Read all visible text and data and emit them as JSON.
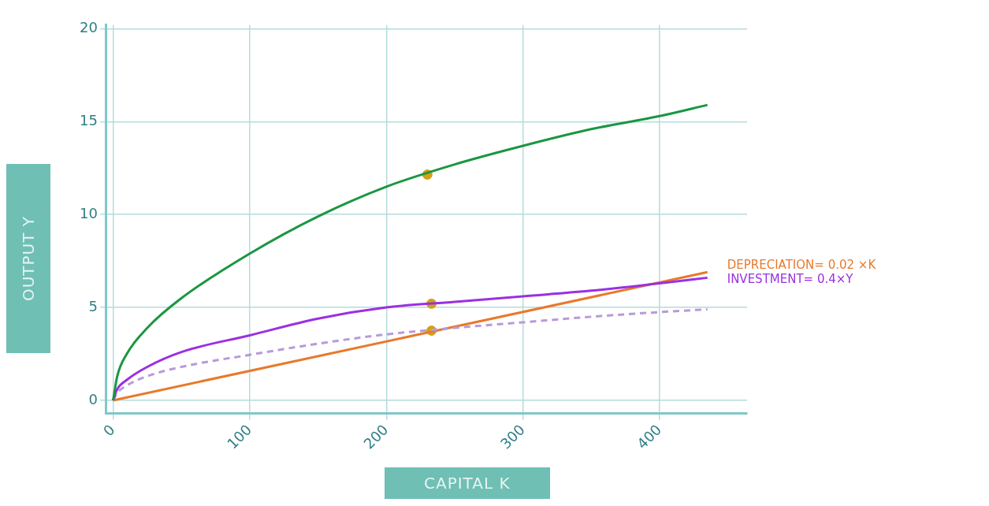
{
  "chart_data": {
    "type": "line",
    "xlabel": "CAPITAL K",
    "ylabel": "OUTPUT Y",
    "xlim": [
      -5,
      464
    ],
    "ylim": [
      -0.7,
      20.2
    ],
    "xticks": [
      0,
      100,
      200,
      300,
      400
    ],
    "yticks": [
      0,
      5,
      10,
      15,
      20
    ],
    "grid": true,
    "legend": false,
    "marker": "none",
    "series": [
      {
        "color": "#1a9641",
        "x": [
          0,
          3,
          10,
          25,
          50,
          100,
          150,
          200,
          250,
          300,
          350,
          400,
          435
        ],
        "values": [
          0,
          1.3,
          2.5,
          3.9,
          5.5,
          7.9,
          9.9,
          11.5,
          12.7,
          13.7,
          14.6,
          15.3,
          15.9
        ]
      },
      {
        "name": "INVESTMENT= 0.4×Y",
        "color": "#9b30e0",
        "x": [
          0,
          3,
          10,
          25,
          50,
          100,
          150,
          200,
          250,
          300,
          350,
          400,
          435
        ],
        "values": [
          0,
          0.6,
          1.1,
          1.8,
          2.6,
          3.5,
          4.4,
          5.0,
          5.3,
          5.6,
          5.9,
          6.3,
          6.6
        ]
      },
      {
        "color": "#b89ad8",
        "line_style": "dashed",
        "x": [
          0,
          3,
          10,
          25,
          50,
          100,
          150,
          200,
          250,
          300,
          350,
          400,
          435
        ],
        "values": [
          0,
          0.4,
          0.8,
          1.3,
          1.8,
          2.45,
          3.05,
          3.55,
          3.9,
          4.2,
          4.5,
          4.75,
          4.9
        ]
      },
      {
        "name": "DEPRECIATION= 0.02 ×K",
        "color": "#e8792b",
        "x": [
          0,
          435
        ],
        "values": [
          0,
          6.9
        ]
      },
      {
        "type": "scatter",
        "marker": "circle",
        "color": "#d4a017",
        "x": [
          230,
          233,
          233
        ],
        "values": [
          12.15,
          5.2,
          3.75
        ]
      }
    ]
  }
}
